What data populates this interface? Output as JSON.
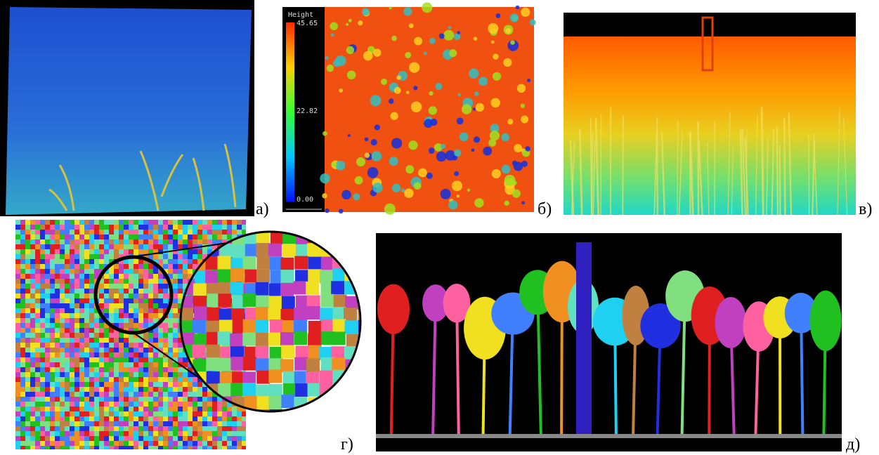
{
  "panels": [
    {
      "label": "а)"
    },
    {
      "label": "б)",
      "colorbar": {
        "title": "Height",
        "ticks": [
          "45.65",
          "22.82",
          "0.00"
        ]
      }
    },
    {
      "label": "в)"
    },
    {
      "label": "г)"
    },
    {
      "label": "д)"
    }
  ]
}
